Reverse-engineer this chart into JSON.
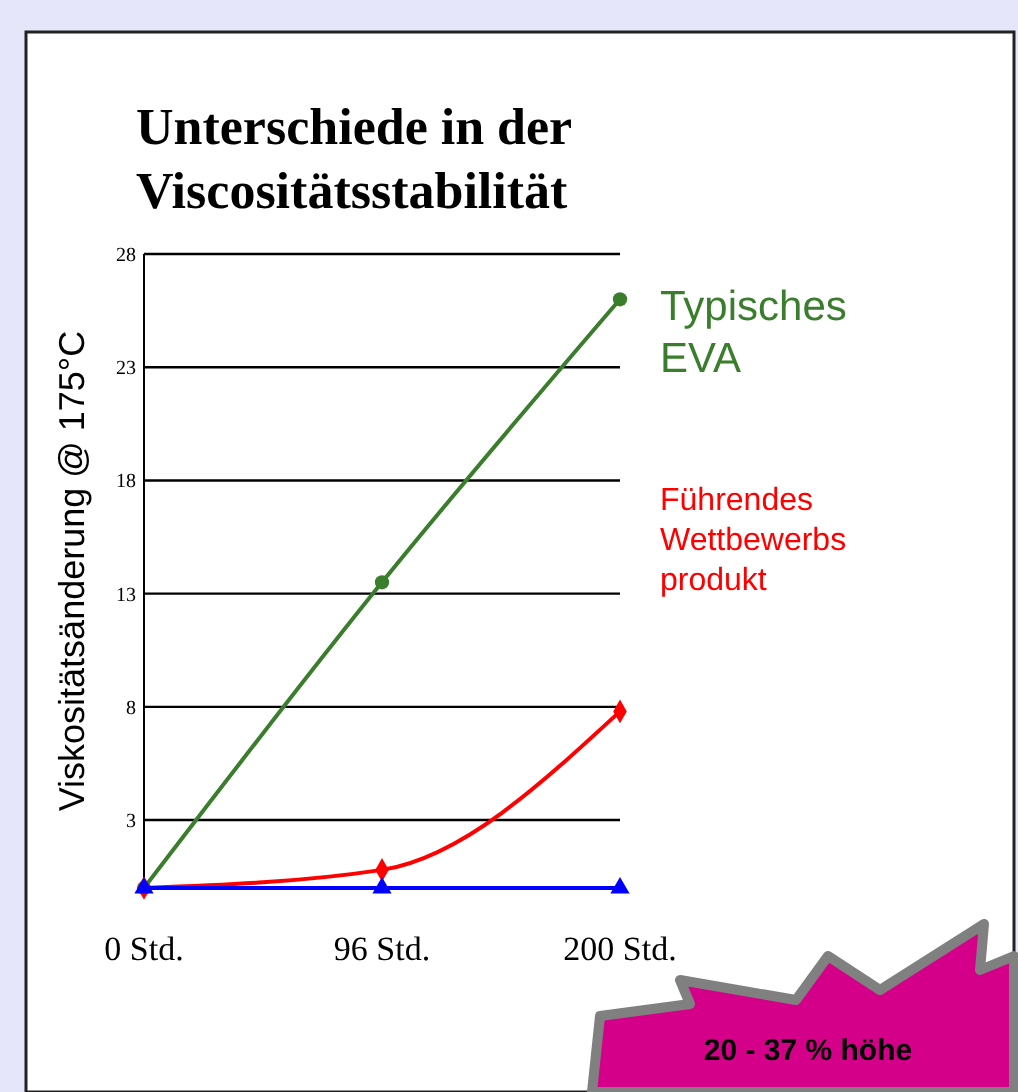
{
  "chart_data": {
    "type": "line",
    "title": "Unterschiede in der Viscositätsstabilität",
    "ylabel": "Viskositätsänderung @  175°C",
    "categories": [
      "0 Std.",
      "96 Std.",
      "200 Std."
    ],
    "ylim": [
      0,
      28
    ],
    "yticks": [
      3,
      8,
      13,
      18,
      23,
      28
    ],
    "grid": "y",
    "legend": "right",
    "line_style": "solid",
    "series": [
      {
        "name": "Typisches EVA",
        "color": "#3a7d2c",
        "values": [
          0,
          13.5,
          26
        ],
        "marker": "circle"
      },
      {
        "name": "Führendes Wettbewerbs produkt",
        "color": "#ff0000",
        "values": [
          0,
          0.8,
          7.8
        ],
        "marker": "diamond"
      },
      {
        "color": "#0000ff",
        "values": [
          0,
          0,
          0
        ],
        "marker": "triangle"
      }
    ],
    "annotations": [
      "20 - 37 % höhe"
    ]
  }
}
